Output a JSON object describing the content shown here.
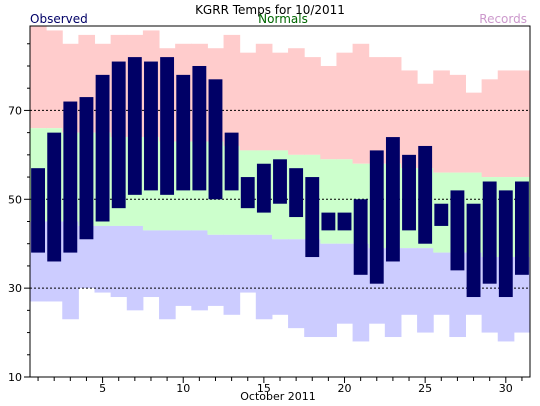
{
  "chart_data": {
    "type": "bar",
    "title": "KGRR Temps for 10/2011",
    "xlabel": "October 2011",
    "ylabel": "",
    "legend": [
      {
        "label": "Observed",
        "color": "#000066"
      },
      {
        "label": "Normals",
        "color": "#006600"
      },
      {
        "label": "Records",
        "color": "#cc99cc"
      }
    ],
    "colors": {
      "observed": "#000066",
      "normal_band": "#ccffcc",
      "record_high_band": "#ffcccc",
      "record_low_band": "#ccccff",
      "gridline": "#000000"
    },
    "ylim": [
      10,
      89
    ],
    "xlim": [
      0.5,
      31.5
    ],
    "yticks": [
      10,
      30,
      50,
      70
    ],
    "xticks": [
      5,
      10,
      15,
      20,
      25,
      30
    ],
    "gridlines_at": [
      30,
      50,
      70
    ],
    "days": [
      1,
      2,
      3,
      4,
      5,
      6,
      7,
      8,
      9,
      10,
      11,
      12,
      13,
      14,
      15,
      16,
      17,
      18,
      19,
      20,
      21,
      22,
      23,
      24,
      25,
      26,
      27,
      28,
      29,
      30,
      31
    ],
    "series": [
      {
        "name": "Observed",
        "high": [
          57,
          65,
          72,
          73,
          78,
          81,
          82,
          81,
          82,
          78,
          80,
          77,
          65,
          55,
          58,
          59,
          57,
          55,
          47,
          47,
          50,
          61,
          64,
          60,
          62,
          49,
          52,
          49,
          54,
          52,
          54
        ],
        "low": [
          38,
          36,
          38,
          41,
          45,
          48,
          51,
          52,
          51,
          52,
          52,
          50,
          52,
          48,
          47,
          49,
          46,
          37,
          43,
          43,
          33,
          31,
          36,
          43,
          40,
          44,
          34,
          28,
          31,
          28,
          33
        ]
      },
      {
        "name": "Normals",
        "high": [
          66,
          66,
          65,
          65,
          65,
          64,
          64,
          64,
          63,
          63,
          63,
          63,
          62,
          61,
          61,
          61,
          60,
          60,
          59,
          59,
          58,
          58,
          58,
          57,
          57,
          56,
          56,
          56,
          55,
          55,
          55
        ],
        "low": [
          45,
          45,
          45,
          44,
          44,
          44,
          44,
          43,
          43,
          43,
          43,
          42,
          42,
          42,
          42,
          41,
          41,
          41,
          40,
          40,
          40,
          39,
          39,
          39,
          39,
          38,
          38,
          38,
          37,
          37,
          37
        ]
      },
      {
        "name": "Records",
        "high": [
          89,
          88,
          85,
          87,
          85,
          87,
          87,
          88,
          84,
          85,
          85,
          84,
          87,
          83,
          85,
          83,
          84,
          82,
          80,
          83,
          85,
          82,
          82,
          79,
          76,
          79,
          78,
          74,
          77,
          79,
          79
        ],
        "low": [
          27,
          27,
          23,
          30,
          29,
          28,
          25,
          28,
          23,
          26,
          25,
          26,
          24,
          29,
          23,
          24,
          21,
          19,
          19,
          22,
          18,
          22,
          19,
          24,
          20,
          24,
          19,
          24,
          20,
          18,
          20
        ]
      }
    ]
  }
}
